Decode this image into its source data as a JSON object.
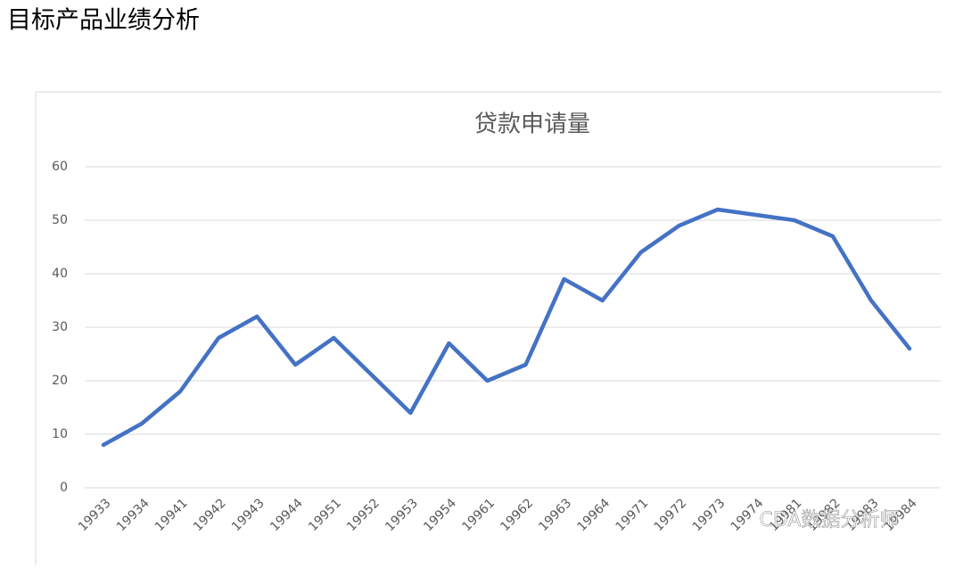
{
  "page_title": "目标产品业绩分析",
  "watermark": "CDA数据分析师",
  "chart_data": {
    "type": "line",
    "title": "贷款申请量",
    "categories": [
      "19933",
      "19934",
      "19941",
      "19942",
      "19943",
      "19944",
      "19951",
      "19952",
      "19953",
      "19954",
      "19961",
      "19962",
      "19963",
      "19964",
      "19971",
      "19972",
      "19973",
      "19974",
      "19981",
      "19982",
      "19983",
      "19984"
    ],
    "series": [
      {
        "color": "#4472c4",
        "values": [
          8,
          12,
          18,
          28,
          32,
          23,
          28,
          21,
          14,
          27,
          20,
          23,
          39,
          35,
          44,
          49,
          52,
          51,
          50,
          47,
          35,
          26
        ]
      }
    ],
    "ylim": [
      0,
      60
    ],
    "yticks": [
      0,
      10,
      20,
      30,
      40,
      50,
      60
    ],
    "grid": true
  }
}
